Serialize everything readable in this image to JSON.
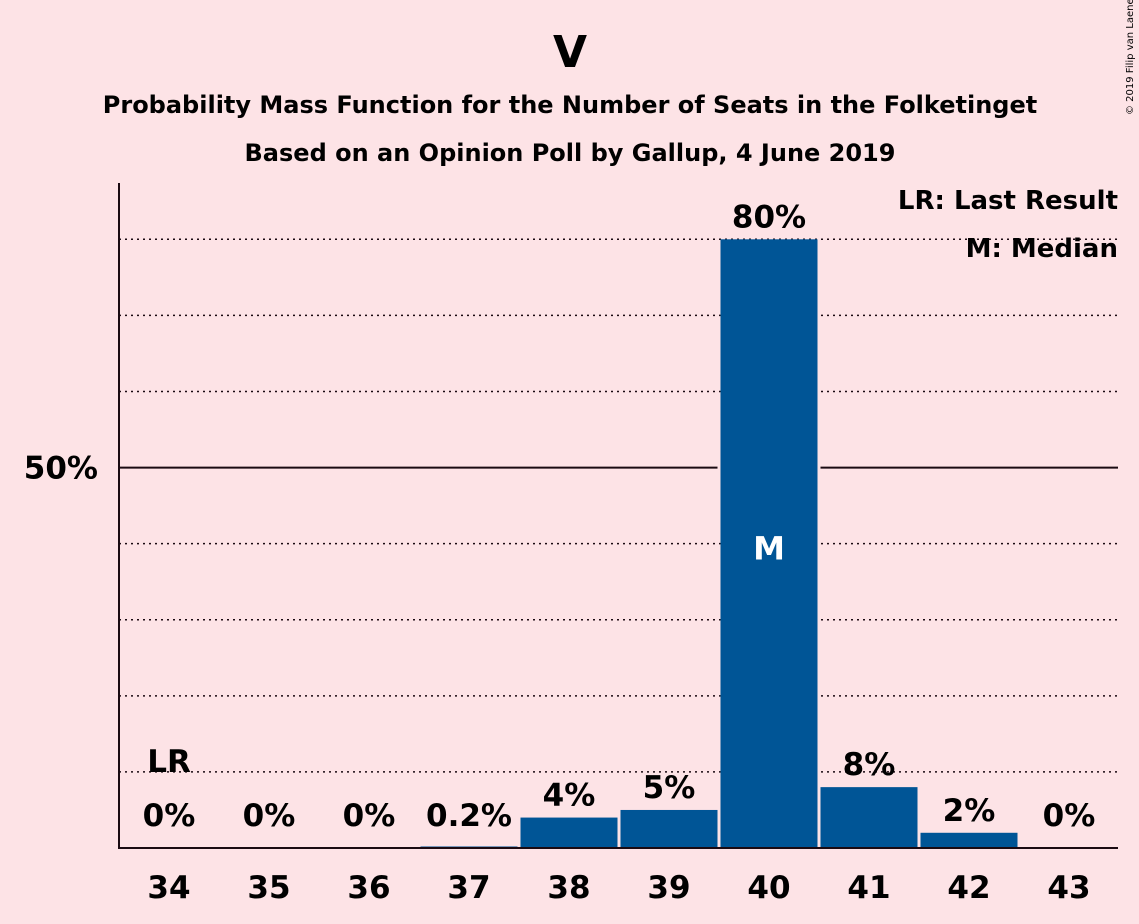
{
  "title": "V",
  "subtitle1": "Probability Mass Function for the Number of Seats in the Folketinget",
  "subtitle2": "Based on an Opinion Poll by Gallup, 4 June 2019",
  "copyright": "© 2019 Filip van Laenen",
  "legend": {
    "lr": "LR: Last Result",
    "median": "M: Median"
  },
  "colors": {
    "background": "#fde3e6",
    "bar": "#005596",
    "text": "#1a0a12"
  },
  "chart_data": {
    "type": "bar",
    "categories": [
      "34",
      "35",
      "36",
      "37",
      "38",
      "39",
      "40",
      "41",
      "42",
      "43"
    ],
    "values": [
      0,
      0,
      0,
      0.2,
      4,
      5,
      80,
      8,
      2,
      0
    ],
    "value_labels": [
      "0%",
      "0%",
      "0%",
      "0.2%",
      "4%",
      "5%",
      "80%",
      "8%",
      "2%",
      "0%"
    ],
    "ylim": [
      0,
      87.4
    ],
    "y_ticks": [
      {
        "value": 50,
        "label": "50%"
      }
    ],
    "gridlines": [
      10,
      20,
      30,
      40,
      60,
      70,
      80
    ],
    "last_result": {
      "category": "34",
      "label": "LR"
    },
    "median": {
      "category": "40",
      "label": "M"
    }
  }
}
